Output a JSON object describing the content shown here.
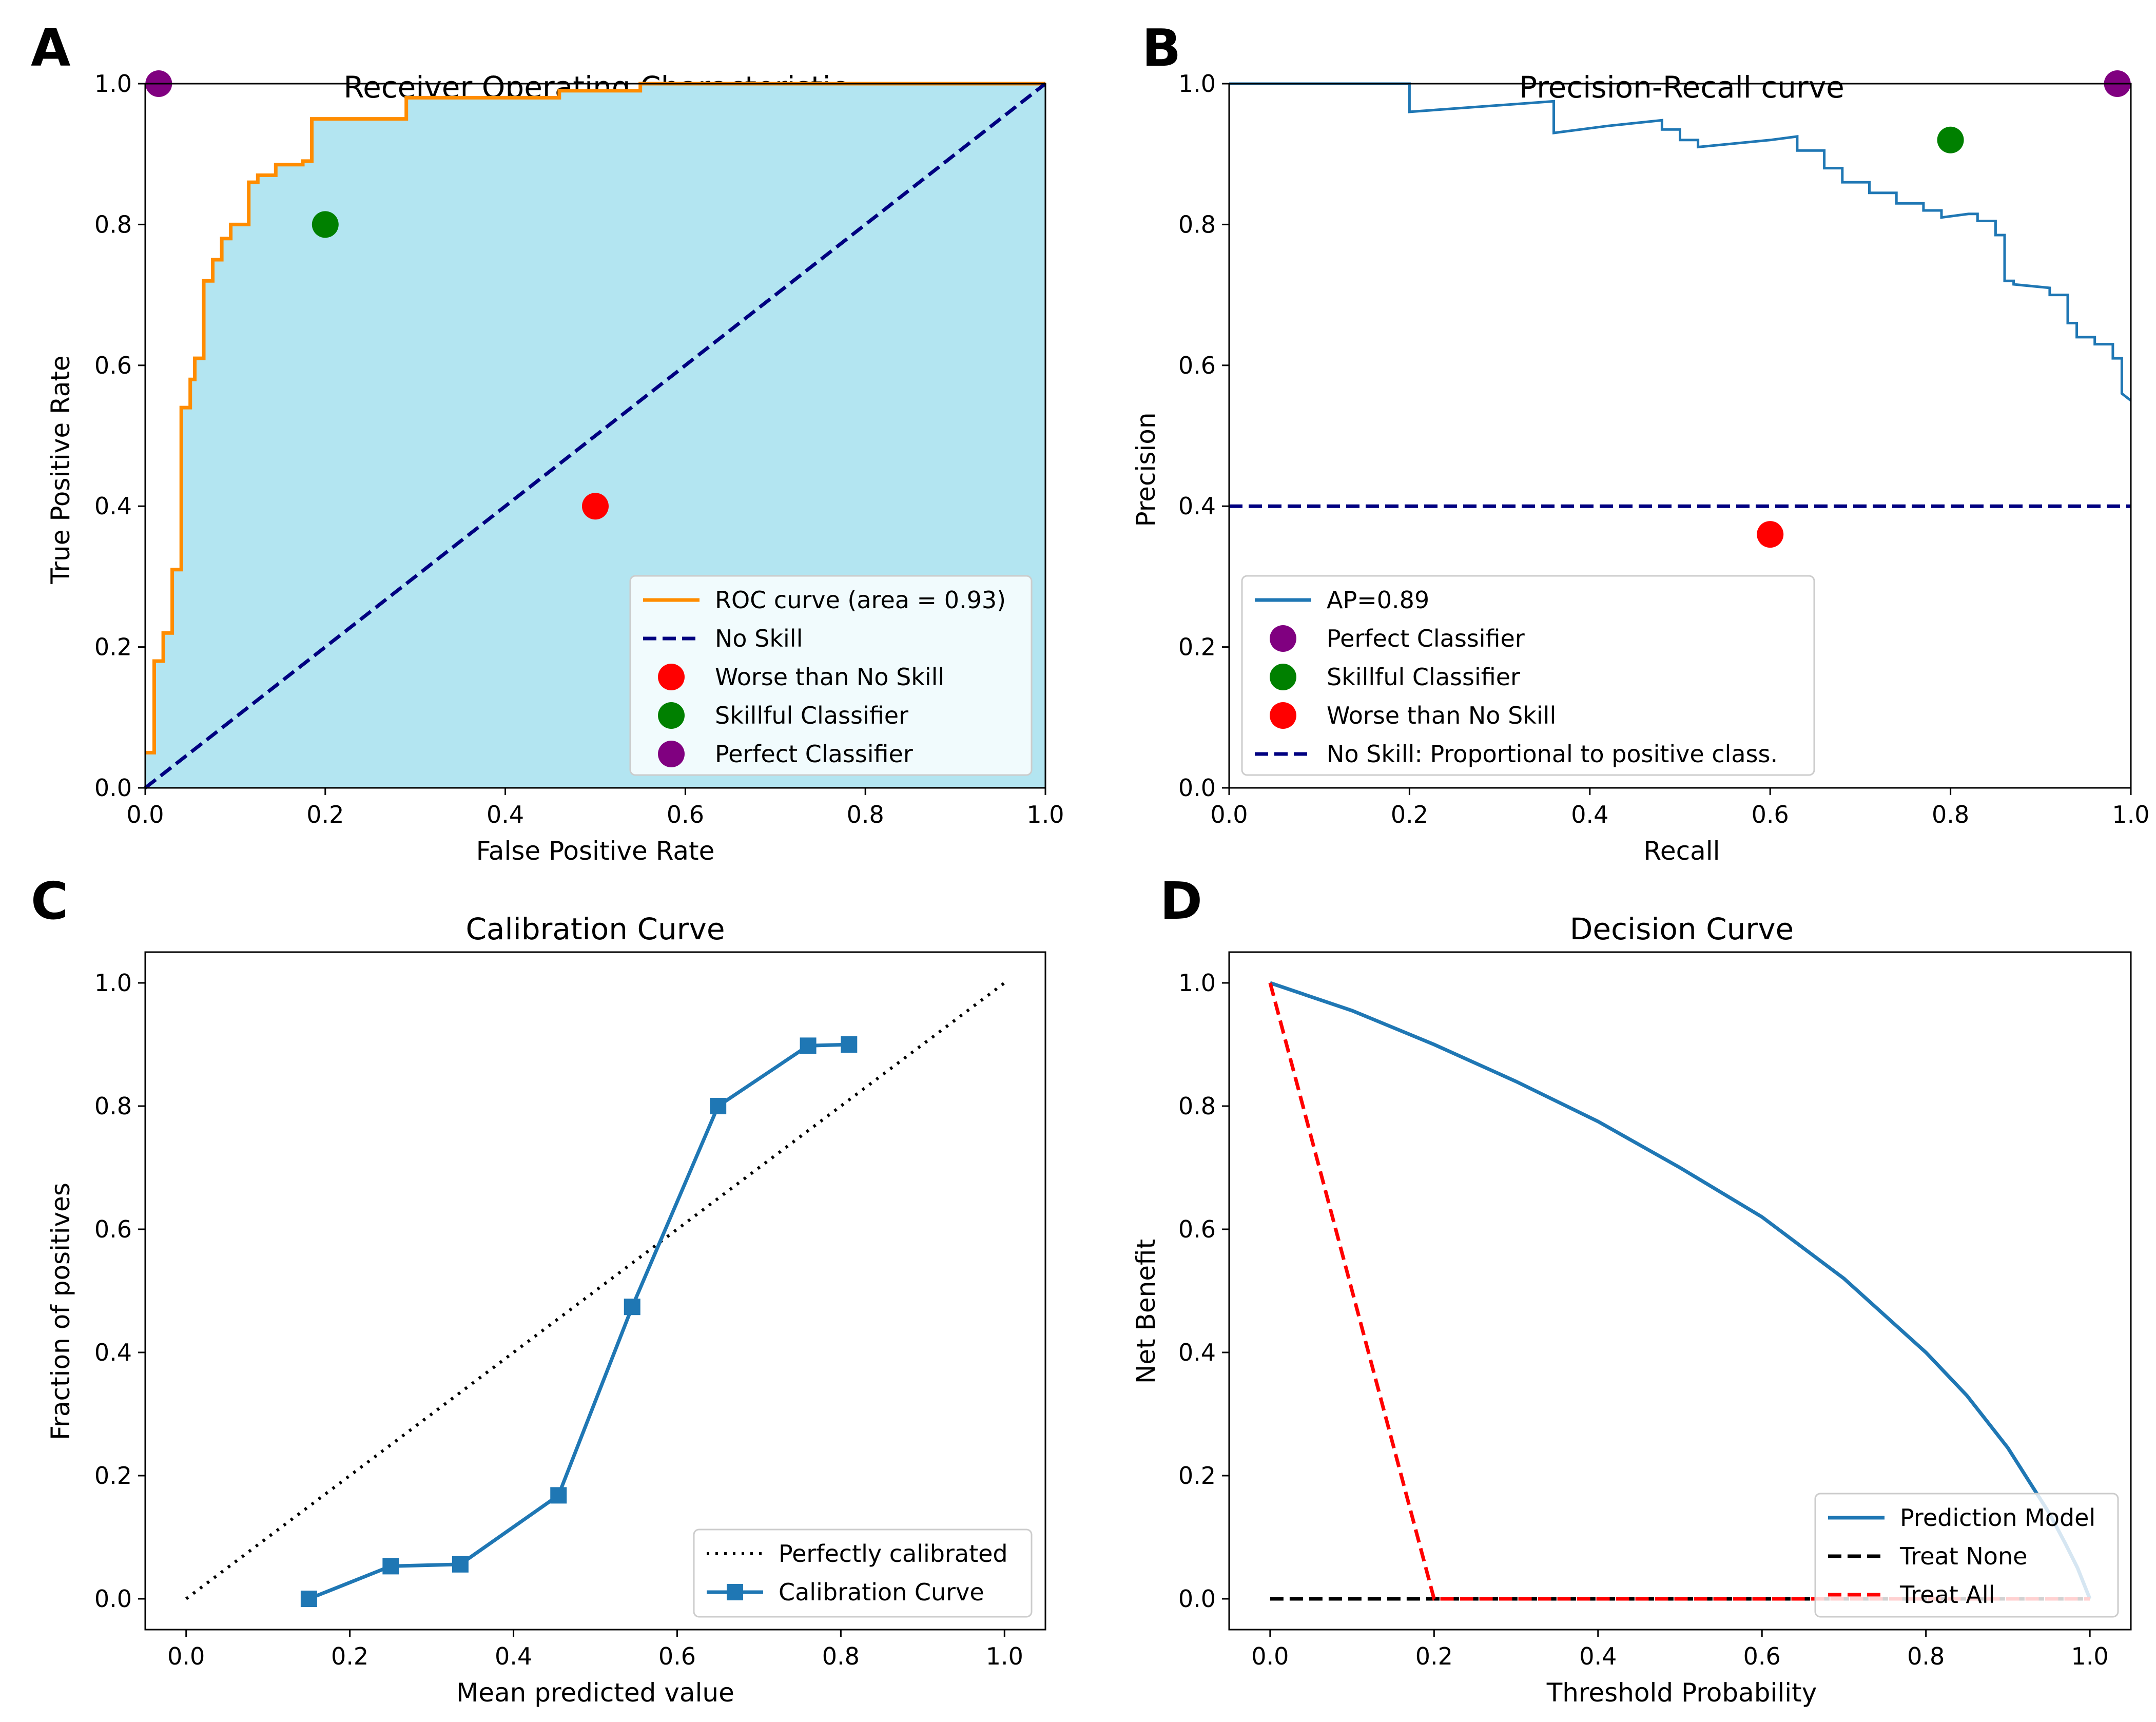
{
  "figure": {
    "panels": [
      "A",
      "B",
      "C",
      "D"
    ]
  },
  "chart_data": [
    {
      "panel": "A",
      "type": "line",
      "title": "Receiver Operating Characteristic",
      "xlabel": "False Positive Rate",
      "ylabel": "True Positive Rate",
      "xlim": [
        0.0,
        1.0
      ],
      "ylim": [
        0.0,
        1.0
      ],
      "xticks": [
        "0.0",
        "0.2",
        "0.4",
        "0.6",
        "0.8",
        "1.0"
      ],
      "yticks": [
        "0.0",
        "0.2",
        "0.4",
        "0.6",
        "0.8",
        "1.0"
      ],
      "fill_color": "#b3e5f1",
      "legend_position": "lower right",
      "series": [
        {
          "name": "ROC curve (area = 0.93)",
          "kind": "step",
          "color": "#ff8c00",
          "points": [
            [
              0,
              0.05
            ],
            [
              0.01,
              0.05
            ],
            [
              0.01,
              0.18
            ],
            [
              0.02,
              0.18
            ],
            [
              0.02,
              0.22
            ],
            [
              0.03,
              0.22
            ],
            [
              0.03,
              0.31
            ],
            [
              0.04,
              0.31
            ],
            [
              0.04,
              0.54
            ],
            [
              0.05,
              0.54
            ],
            [
              0.05,
              0.58
            ],
            [
              0.055,
              0.58
            ],
            [
              0.055,
              0.61
            ],
            [
              0.065,
              0.61
            ],
            [
              0.065,
              0.72
            ],
            [
              0.075,
              0.72
            ],
            [
              0.075,
              0.75
            ],
            [
              0.085,
              0.75
            ],
            [
              0.085,
              0.78
            ],
            [
              0.095,
              0.78
            ],
            [
              0.095,
              0.8
            ],
            [
              0.115,
              0.8
            ],
            [
              0.115,
              0.86
            ],
            [
              0.125,
              0.86
            ],
            [
              0.125,
              0.87
            ],
            [
              0.145,
              0.87
            ],
            [
              0.145,
              0.885
            ],
            [
              0.175,
              0.885
            ],
            [
              0.175,
              0.89
            ],
            [
              0.185,
              0.89
            ],
            [
              0.185,
              0.95
            ],
            [
              0.29,
              0.95
            ],
            [
              0.29,
              0.98
            ],
            [
              0.46,
              0.98
            ],
            [
              0.46,
              0.99
            ],
            [
              0.55,
              0.99
            ],
            [
              0.55,
              1.0
            ],
            [
              1.0,
              1.0
            ]
          ]
        },
        {
          "name": "No Skill",
          "kind": "dashed",
          "color": "#000080",
          "points": [
            [
              0,
              0
            ],
            [
              1,
              1
            ]
          ]
        },
        {
          "name": "Worse than No Skill",
          "kind": "marker",
          "color": "#ff0000",
          "points": [
            [
              0.5,
              0.4
            ]
          ]
        },
        {
          "name": "Skillful Classifier",
          "kind": "marker",
          "color": "#008000",
          "points": [
            [
              0.2,
              0.8
            ]
          ]
        },
        {
          "name": "Perfect Classifier",
          "kind": "marker",
          "color": "#800080",
          "points": [
            [
              0.015,
              1.0
            ]
          ]
        }
      ]
    },
    {
      "panel": "B",
      "type": "line",
      "title": "Precision-Recall curve",
      "xlabel": "Recall",
      "ylabel": "Precision",
      "xlim": [
        0.0,
        1.0
      ],
      "ylim": [
        0.0,
        1.0
      ],
      "xticks": [
        "0.0",
        "0.2",
        "0.4",
        "0.6",
        "0.8",
        "1.0"
      ],
      "yticks": [
        "0.0",
        "0.2",
        "0.4",
        "0.6",
        "0.8",
        "1.0"
      ],
      "legend_position": "lower left",
      "series": [
        {
          "name": "AP=0.89",
          "kind": "step",
          "color": "#1f77b4",
          "points": [
            [
              0,
              1.0
            ],
            [
              0.2,
              1.0
            ],
            [
              0.2,
              0.96
            ],
            [
              0.36,
              0.975
            ],
            [
              0.36,
              0.93
            ],
            [
              0.42,
              0.94
            ],
            [
              0.48,
              0.948
            ],
            [
              0.48,
              0.935
            ],
            [
              0.5,
              0.935
            ],
            [
              0.5,
              0.92
            ],
            [
              0.52,
              0.92
            ],
            [
              0.52,
              0.91
            ],
            [
              0.6,
              0.92
            ],
            [
              0.63,
              0.925
            ],
            [
              0.63,
              0.905
            ],
            [
              0.66,
              0.905
            ],
            [
              0.66,
              0.88
            ],
            [
              0.68,
              0.88
            ],
            [
              0.68,
              0.86
            ],
            [
              0.71,
              0.86
            ],
            [
              0.71,
              0.845
            ],
            [
              0.74,
              0.845
            ],
            [
              0.74,
              0.83
            ],
            [
              0.77,
              0.83
            ],
            [
              0.77,
              0.82
            ],
            [
              0.79,
              0.82
            ],
            [
              0.79,
              0.81
            ],
            [
              0.82,
              0.815
            ],
            [
              0.83,
              0.815
            ],
            [
              0.83,
              0.805
            ],
            [
              0.85,
              0.805
            ],
            [
              0.85,
              0.785
            ],
            [
              0.86,
              0.785
            ],
            [
              0.86,
              0.72
            ],
            [
              0.87,
              0.72
            ],
            [
              0.87,
              0.715
            ],
            [
              0.91,
              0.71
            ],
            [
              0.91,
              0.7
            ],
            [
              0.93,
              0.7
            ],
            [
              0.93,
              0.66
            ],
            [
              0.94,
              0.66
            ],
            [
              0.94,
              0.64
            ],
            [
              0.96,
              0.64
            ],
            [
              0.96,
              0.63
            ],
            [
              0.98,
              0.63
            ],
            [
              0.98,
              0.61
            ],
            [
              0.99,
              0.61
            ],
            [
              0.99,
              0.56
            ],
            [
              1.0,
              0.55
            ]
          ]
        },
        {
          "name": "Perfect Classifier",
          "kind": "marker",
          "color": "#800080",
          "points": [
            [
              0.985,
              1.0
            ]
          ]
        },
        {
          "name": "Skillful Classifier",
          "kind": "marker",
          "color": "#008000",
          "points": [
            [
              0.8,
              0.92
            ]
          ]
        },
        {
          "name": "Worse than No Skill",
          "kind": "marker",
          "color": "#ff0000",
          "points": [
            [
              0.6,
              0.36
            ]
          ]
        },
        {
          "name": "No Skill: Proportional to positive class.",
          "kind": "dashed",
          "color": "#000080",
          "points": [
            [
              0,
              0.4
            ],
            [
              1,
              0.4
            ]
          ]
        }
      ]
    },
    {
      "panel": "C",
      "type": "line",
      "title": "Calibration Curve",
      "xlabel": "Mean predicted value",
      "ylabel": "Fraction of positives",
      "xlim": [
        -0.05,
        1.05
      ],
      "ylim": [
        -0.05,
        1.05
      ],
      "xticks": [
        "0.0",
        "0.2",
        "0.4",
        "0.6",
        "0.8",
        "1.0"
      ],
      "yticks": [
        "0.0",
        "0.2",
        "0.4",
        "0.6",
        "0.8",
        "1.0"
      ],
      "legend_position": "lower right",
      "series": [
        {
          "name": "Perfectly calibrated",
          "kind": "dotted",
          "color": "#000000",
          "points": [
            [
              0,
              0
            ],
            [
              1,
              1
            ]
          ]
        },
        {
          "name": "Calibration Curve",
          "kind": "line-square",
          "color": "#1f77b4",
          "points": [
            [
              0.15,
              0.0
            ],
            [
              0.25,
              0.053
            ],
            [
              0.335,
              0.056
            ],
            [
              0.455,
              0.168
            ],
            [
              0.545,
              0.474
            ],
            [
              0.65,
              0.8
            ],
            [
              0.76,
              0.898
            ],
            [
              0.81,
              0.9
            ]
          ]
        }
      ]
    },
    {
      "panel": "D",
      "type": "line",
      "title": "Decision Curve",
      "xlabel": "Threshold Probability",
      "ylabel": "Net Benefit",
      "xlim": [
        -0.05,
        1.05
      ],
      "ylim": [
        -0.05,
        1.05
      ],
      "xticks": [
        "0.0",
        "0.2",
        "0.4",
        "0.6",
        "0.8",
        "1.0"
      ],
      "yticks": [
        "0.0",
        "0.2",
        "0.4",
        "0.6",
        "0.8",
        "1.0"
      ],
      "legend_position": "lower right",
      "series": [
        {
          "name": "Prediction Model",
          "kind": "line",
          "color": "#1f77b4",
          "points": [
            [
              0,
              1.0
            ],
            [
              0.1,
              0.955
            ],
            [
              0.2,
              0.9
            ],
            [
              0.3,
              0.84
            ],
            [
              0.4,
              0.775
            ],
            [
              0.5,
              0.7
            ],
            [
              0.6,
              0.62
            ],
            [
              0.7,
              0.52
            ],
            [
              0.8,
              0.4
            ],
            [
              0.85,
              0.33
            ],
            [
              0.9,
              0.245
            ],
            [
              0.95,
              0.14
            ],
            [
              0.97,
              0.09
            ],
            [
              0.985,
              0.05
            ],
            [
              1.0,
              0.0
            ]
          ]
        },
        {
          "name": "Treat None",
          "kind": "dashed",
          "color": "#000000",
          "points": [
            [
              0,
              0
            ],
            [
              1,
              0
            ]
          ]
        },
        {
          "name": "Treat All",
          "kind": "dashed",
          "color": "#ff0000",
          "points": [
            [
              0,
              1.0
            ],
            [
              0.2,
              0.0
            ],
            [
              1.0,
              0.0
            ]
          ]
        }
      ]
    }
  ]
}
